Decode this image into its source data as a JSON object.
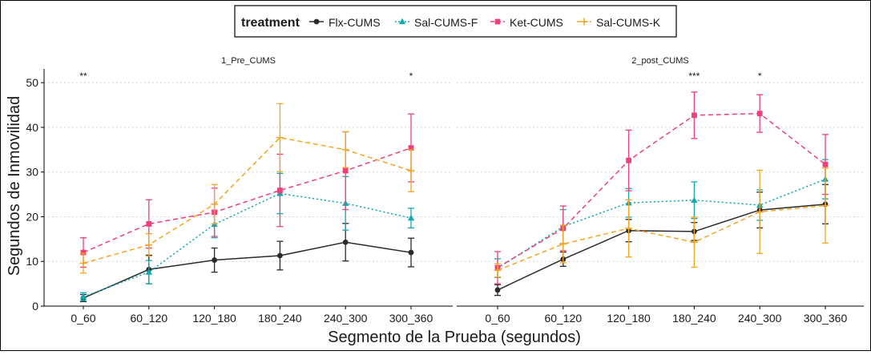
{
  "legend": {
    "title": "treatment",
    "items": [
      {
        "label": "Flx-CUMS",
        "color": "#2b2b2b",
        "marker": "circle",
        "dash": "solid"
      },
      {
        "label": "Sal-CUMS-F",
        "color": "#12aab0",
        "marker": "triangle",
        "dash": "dotted"
      },
      {
        "label": "Ket-CUMS",
        "color": "#f0407a",
        "marker": "square",
        "dash": "dashed"
      },
      {
        "label": "Sal-CUMS-K",
        "color": "#f2a623",
        "marker": "plus",
        "dash": "dashed"
      }
    ]
  },
  "chart_data": {
    "type": "line",
    "xlabel": "Segmento de la Prueba (segundos)",
    "ylabel": "Segundos de Inmovilidad",
    "ylim": [
      0,
      52
    ],
    "yticks": [
      0,
      10,
      20,
      30,
      40,
      50
    ],
    "grid": "horizontal dotted",
    "legend_position": "top",
    "categories": [
      "0_60",
      "60_120",
      "120_180",
      "180_240",
      "240_300",
      "300_360"
    ],
    "panels": [
      {
        "title": "1_Pre_CUMS",
        "annotations": [
          {
            "category": "0_60",
            "text": "**"
          },
          {
            "category": "300_360",
            "text": "*"
          }
        ],
        "series": [
          {
            "name": "Flx-CUMS",
            "values": [
              1.8,
              8.2,
              10.3,
              11.3,
              14.3,
              12.0
            ],
            "err": [
              0.8,
              3.2,
              2.7,
              3.2,
              4.2,
              3.2
            ]
          },
          {
            "name": "Sal-CUMS-F",
            "values": [
              2.1,
              7.6,
              18.3,
              25.2,
              23.0,
              19.7
            ],
            "err": [
              0.9,
              2.6,
              3.0,
              4.5,
              6.0,
              2.2
            ]
          },
          {
            "name": "Ket-CUMS",
            "values": [
              12.0,
              18.4,
              21.0,
              25.9,
              30.3,
              35.4
            ],
            "err": [
              3.3,
              5.4,
              5.4,
              8.1,
              8.7,
              7.6
            ]
          },
          {
            "name": "Sal-CUMS-K",
            "values": [
              9.6,
              13.7,
              22.8,
              37.7,
              35.0,
              30.3
            ],
            "err": [
              2.2,
              2.5,
              4.4,
              7.6,
              4.0,
              4.7
            ]
          }
        ]
      },
      {
        "title": "2_post_CUMS",
        "annotations": [
          {
            "category": "180_240",
            "text": "***"
          },
          {
            "category": "240_300",
            "text": "*"
          }
        ],
        "series": [
          {
            "name": "Flx-CUMS",
            "values": [
              3.6,
              10.5,
              16.9,
              16.7,
              21.5,
              22.8
            ],
            "err": [
              1.2,
              1.6,
              2.5,
              2.0,
              4.0,
              4.4
            ]
          },
          {
            "name": "Sal-CUMS-F",
            "values": [
              8.5,
              17.8,
              23.1,
              23.7,
              22.6,
              28.4
            ],
            "err": [
              2.1,
              3.8,
              3.2,
              4.1,
              3.4,
              4.4
            ]
          },
          {
            "name": "Ket-CUMS",
            "values": [
              8.6,
              17.4,
              32.6,
              42.7,
              43.1,
              31.7
            ],
            "err": [
              3.6,
              5.0,
              6.8,
              5.2,
              4.2,
              6.7
            ]
          },
          {
            "name": "Sal-CUMS-K",
            "values": [
              8.0,
              13.9,
              17.4,
              14.3,
              21.1,
              22.5
            ],
            "err": [
              1.5,
              4.2,
              6.4,
              5.6,
              9.3,
              8.4
            ]
          }
        ]
      }
    ]
  }
}
